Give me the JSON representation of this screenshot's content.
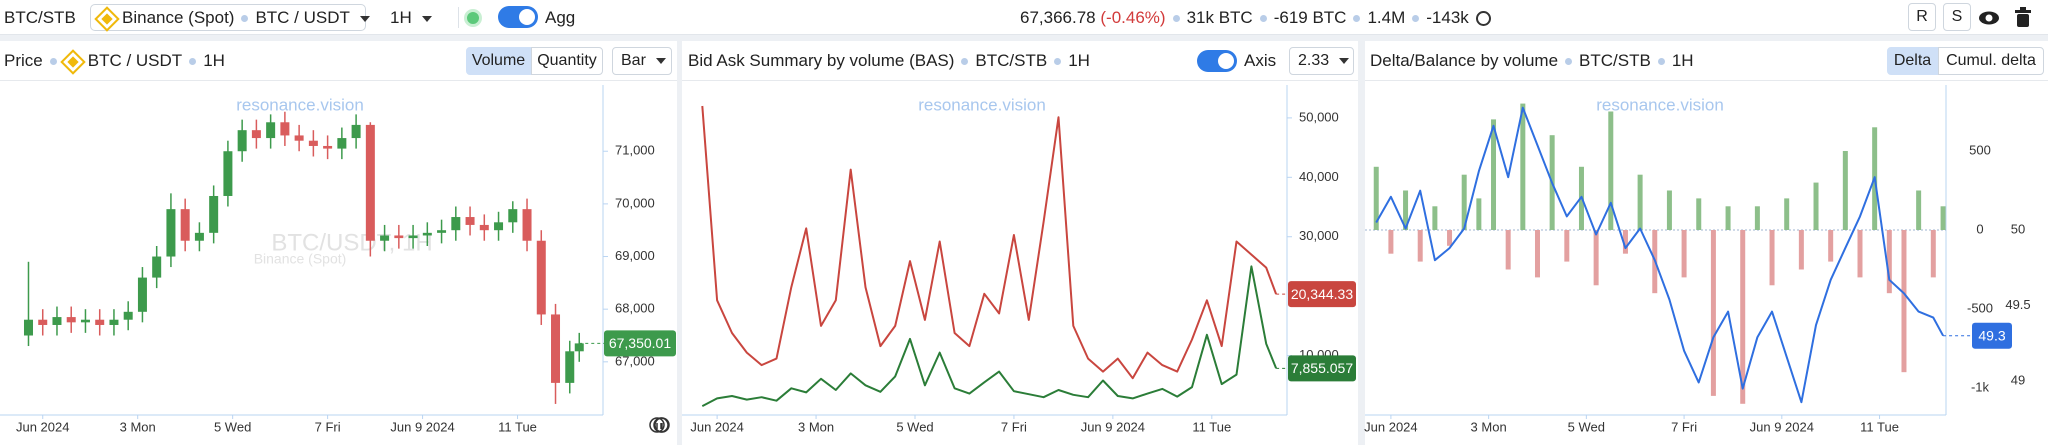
{
  "toolbar": {
    "symbol": "BTC/STB",
    "exchange": "Binance (Spot)",
    "pair": "BTC / USDT",
    "interval": "1H",
    "agg": "Agg",
    "price": "67,366.78",
    "change": "(-0.46%)",
    "stats": [
      "31k BTC",
      "-619 BTC",
      "1.4M",
      "-143k"
    ],
    "buttons": [
      "R",
      "S"
    ]
  },
  "chart_data": [
    {
      "type": "candlestick",
      "title": "Price",
      "pair": "BTC / USDT",
      "interval": "1H",
      "buttons": [
        "Volume",
        "Quantity"
      ],
      "style": "Bar",
      "watermark": "resonance.vision",
      "watermark_symbol": "BTC/USDT, 1H",
      "watermark_exchange": "Binance (Spot)",
      "up_color": "#3d9a4c",
      "down_color": "#d95c5c",
      "x": [
        0.7,
        1,
        1.3,
        1.6,
        1.9,
        2.2,
        2.5,
        2.8,
        3.1,
        3.4,
        3.7,
        4,
        4.3,
        4.6,
        4.9,
        5.2,
        5.5,
        5.8,
        6.1,
        6.4,
        6.7,
        7,
        7.3,
        7.6,
        7.9,
        8.2,
        8.5,
        8.8,
        9.1,
        9.4,
        9.7,
        10,
        10.3,
        10.6,
        10.9,
        11.2,
        11.5,
        11.8,
        12.1,
        12.3
      ],
      "open": [
        67500,
        67800,
        67700,
        67850,
        67750,
        67800,
        67700,
        67800,
        67950,
        68600,
        69000,
        69900,
        69300,
        69450,
        70150,
        71000,
        71400,
        71250,
        71550,
        71300,
        71200,
        71100,
        71050,
        71250,
        71500,
        69300,
        69400,
        69350,
        69400,
        69450,
        69500,
        69750,
        69600,
        69500,
        69650,
        69900,
        69300,
        67900,
        66600,
        67200
      ],
      "high": [
        68900,
        68000,
        68050,
        68050,
        68000,
        68000,
        68000,
        68150,
        68800,
        69200,
        70200,
        70100,
        69650,
        70350,
        71200,
        71600,
        71600,
        71700,
        71750,
        71500,
        71400,
        71300,
        71450,
        71700,
        71550,
        69600,
        69600,
        69600,
        69650,
        69700,
        69950,
        69950,
        69800,
        69850,
        70050,
        70100,
        69500,
        68100,
        67400,
        67550
      ],
      "low": [
        67300,
        67500,
        67500,
        67550,
        67550,
        67500,
        67500,
        67600,
        67750,
        68400,
        68800,
        69100,
        69100,
        69250,
        69950,
        70800,
        71050,
        71050,
        71100,
        71000,
        70900,
        70850,
        70850,
        71050,
        69000,
        69100,
        69150,
        69150,
        69200,
        69250,
        69300,
        69400,
        69300,
        69300,
        69450,
        69100,
        67700,
        66200,
        66400,
        67000
      ],
      "close": [
        67800,
        67700,
        67850,
        67750,
        67800,
        67700,
        67800,
        67950,
        68600,
        69000,
        69900,
        69300,
        69450,
        70150,
        71000,
        71400,
        71250,
        71550,
        71300,
        71200,
        71100,
        71050,
        71250,
        71500,
        69300,
        69400,
        69350,
        69400,
        69450,
        69500,
        69750,
        69600,
        69500,
        69650,
        69900,
        69300,
        67900,
        66600,
        67200,
        67350.01
      ],
      "value_labels": [
        null,
        null,
        null,
        null,
        null,
        null,
        null,
        null,
        null,
        null,
        null,
        null,
        null,
        null,
        null,
        null,
        null,
        null,
        null,
        null,
        null,
        null,
        null,
        null,
        null,
        null,
        null,
        null,
        null,
        null,
        null,
        null,
        null,
        null,
        null,
        null,
        null,
        null,
        null,
        "67,350.01"
      ],
      "xlim": [
        0.1,
        12.8
      ],
      "xticks": [
        {
          "value": 1,
          "label": "Jun 2024"
        },
        {
          "value": 3,
          "label": "3 Mon"
        },
        {
          "value": 5,
          "label": "5 Wed"
        },
        {
          "value": 7,
          "label": "7 Fri"
        },
        {
          "value": 9,
          "label": "Jun 9 2024"
        },
        {
          "value": 11,
          "label": "11 Tue"
        }
      ],
      "ylim": [
        65990,
        72220
      ],
      "yticks": [
        {
          "value": 67000,
          "label": "67,000"
        },
        {
          "value": 68000,
          "label": "68,000"
        },
        {
          "value": 69000,
          "label": "69,000"
        },
        {
          "value": 70000,
          "label": "70,000"
        },
        {
          "value": 71000,
          "label": "71,000"
        }
      ]
    },
    {
      "type": "line",
      "title": "Bid Ask Summary by volume (BAS)",
      "symbol": "BTC/STB",
      "interval": "1H",
      "toggle": "Axis",
      "setting": "2.33",
      "watermark": "resonance.vision",
      "x": [
        0.7,
        1,
        1.3,
        1.6,
        1.9,
        2.2,
        2.5,
        2.8,
        3.1,
        3.4,
        3.7,
        4,
        4.3,
        4.6,
        4.9,
        5.2,
        5.5,
        5.8,
        6.1,
        6.4,
        6.7,
        7,
        7.3,
        7.6,
        7.9,
        8.2,
        8.5,
        8.8,
        9.1,
        9.4,
        9.7,
        10,
        10.3,
        10.6,
        10.9,
        11.2,
        11.5,
        11.8,
        12.1,
        12.3
      ],
      "series": [
        {
          "color": "#c9463f",
          "values": [
            52000,
            19300,
            13800,
            10500,
            8400,
            9500,
            21500,
            31400,
            15000,
            19300,
            41300,
            21500,
            11600,
            15000,
            25900,
            16000,
            29200,
            13800,
            11600,
            20400,
            17100,
            30300,
            16000,
            32500,
            50100,
            15000,
            9500,
            7300,
            9500,
            6200,
            10500,
            8400,
            7300,
            12700,
            19300,
            11600,
            29200,
            27000,
            24800,
            20344.33
          ],
          "value_labels": [
            null,
            null,
            null,
            null,
            null,
            null,
            null,
            null,
            null,
            null,
            null,
            null,
            null,
            null,
            null,
            null,
            null,
            null,
            null,
            null,
            null,
            null,
            null,
            null,
            null,
            null,
            null,
            null,
            null,
            null,
            null,
            null,
            null,
            null,
            null,
            null,
            null,
            null,
            null,
            "20,344.33"
          ]
        },
        {
          "color": "#2b7d38",
          "values": [
            1500,
            2800,
            3200,
            2600,
            3000,
            2400,
            4500,
            3800,
            6100,
            4200,
            7000,
            5000,
            3900,
            6500,
            12800,
            5000,
            10500,
            4500,
            3600,
            5500,
            7300,
            4000,
            3500,
            3000,
            4200,
            3400,
            3000,
            5800,
            3200,
            2800,
            3600,
            4400,
            3100,
            4700,
            13500,
            5200,
            6800,
            25000,
            12000,
            7855.057
          ],
          "value_labels": [
            null,
            null,
            null,
            null,
            null,
            null,
            null,
            null,
            null,
            null,
            null,
            null,
            null,
            null,
            null,
            null,
            null,
            null,
            null,
            null,
            null,
            null,
            null,
            null,
            null,
            null,
            null,
            null,
            null,
            null,
            null,
            null,
            null,
            null,
            null,
            null,
            null,
            null,
            null,
            "7,855.057"
          ]
        }
      ],
      "xlim": [
        0.29,
        12.52
      ],
      "xticks": [
        {
          "value": 1,
          "label": "Jun 2024"
        },
        {
          "value": 3,
          "label": "3 Mon"
        },
        {
          "value": 5,
          "label": "5 Wed"
        },
        {
          "value": 7,
          "label": "7 Fri"
        },
        {
          "value": 9,
          "label": "Jun 9 2024"
        },
        {
          "value": 11,
          "label": "11 Tue"
        }
      ],
      "ylim": [
        0,
        55200
      ],
      "yticks": [
        {
          "value": 10000,
          "label": "10,000"
        },
        {
          "value": 30000,
          "label": "30,000"
        },
        {
          "value": 40000,
          "label": "40,000"
        },
        {
          "value": 50000,
          "label": "50,000"
        }
      ]
    },
    {
      "type": "combo",
      "title": "Delta/Balance by volume",
      "symbol": "BTC/STB",
      "interval": "1H",
      "buttons": [
        "Delta",
        "Cumul. delta"
      ],
      "watermark": "resonance.vision",
      "x": [
        0.7,
        1,
        1.3,
        1.6,
        1.9,
        2.2,
        2.5,
        2.8,
        3.1,
        3.4,
        3.7,
        4,
        4.3,
        4.6,
        4.9,
        5.2,
        5.5,
        5.8,
        6.1,
        6.4,
        6.7,
        7,
        7.3,
        7.6,
        7.9,
        8.2,
        8.5,
        8.8,
        9.1,
        9.4,
        9.7,
        10,
        10.3,
        10.6,
        10.9,
        11.2,
        11.5,
        11.8,
        12.1,
        12.3
      ],
      "series": [
        {
          "type": "bar",
          "pos_color": "#8dbf8a",
          "neg_color": "#e3a0a0",
          "values": [
            400,
            -150,
            250,
            -200,
            150,
            -100,
            350,
            200,
            700,
            -250,
            800,
            -300,
            600,
            -200,
            400,
            -350,
            750,
            -150,
            350,
            -400,
            250,
            -300,
            200,
            -1050,
            150,
            -1100,
            150,
            -350,
            200,
            -250,
            300,
            -200,
            500,
            -300,
            650,
            -400,
            -900,
            250,
            -300,
            150
          ]
        },
        {
          "type": "line",
          "axis": "y2",
          "color": "#2f6fe0",
          "values": [
            50.05,
            50.22,
            50.01,
            50.26,
            49.8,
            49.88,
            50.01,
            50.39,
            50.69,
            50.35,
            50.81,
            50.56,
            50.31,
            50.09,
            50.22,
            49.97,
            50.18,
            49.88,
            50.01,
            49.8,
            49.54,
            49.2,
            48.99,
            49.29,
            49.46,
            48.95,
            49.29,
            49.46,
            49.16,
            48.86,
            49.37,
            49.67,
            49.88,
            50.09,
            50.35,
            49.67,
            49.58,
            49.46,
            49.42,
            49.3
          ],
          "value_labels": [
            null,
            null,
            null,
            null,
            null,
            null,
            null,
            null,
            null,
            null,
            null,
            null,
            null,
            null,
            null,
            null,
            null,
            null,
            null,
            null,
            null,
            null,
            null,
            null,
            null,
            null,
            null,
            null,
            null,
            null,
            null,
            null,
            null,
            null,
            null,
            null,
            null,
            null,
            null,
            "49.3"
          ]
        }
      ],
      "xlim": [
        0.47,
        12.36
      ],
      "xticks": [
        {
          "value": 1,
          "label": "Jun 2024"
        },
        {
          "value": 3,
          "label": "3 Mon"
        },
        {
          "value": 5,
          "label": "5 Wed"
        },
        {
          "value": 7,
          "label": "7 Fri"
        },
        {
          "value": 9,
          "label": "Jun 9 2024"
        },
        {
          "value": 11,
          "label": "11 Tue"
        }
      ],
      "ylim": [
        -1171,
        905
      ],
      "yticks": [
        500,
        0,
        -500,
        {
          "value": -1000,
          "label": "-1k"
        }
      ],
      "y2lim": [
        48.775,
        50.947
      ],
      "y2ticks": [
        50,
        49.5,
        49
      ]
    }
  ]
}
